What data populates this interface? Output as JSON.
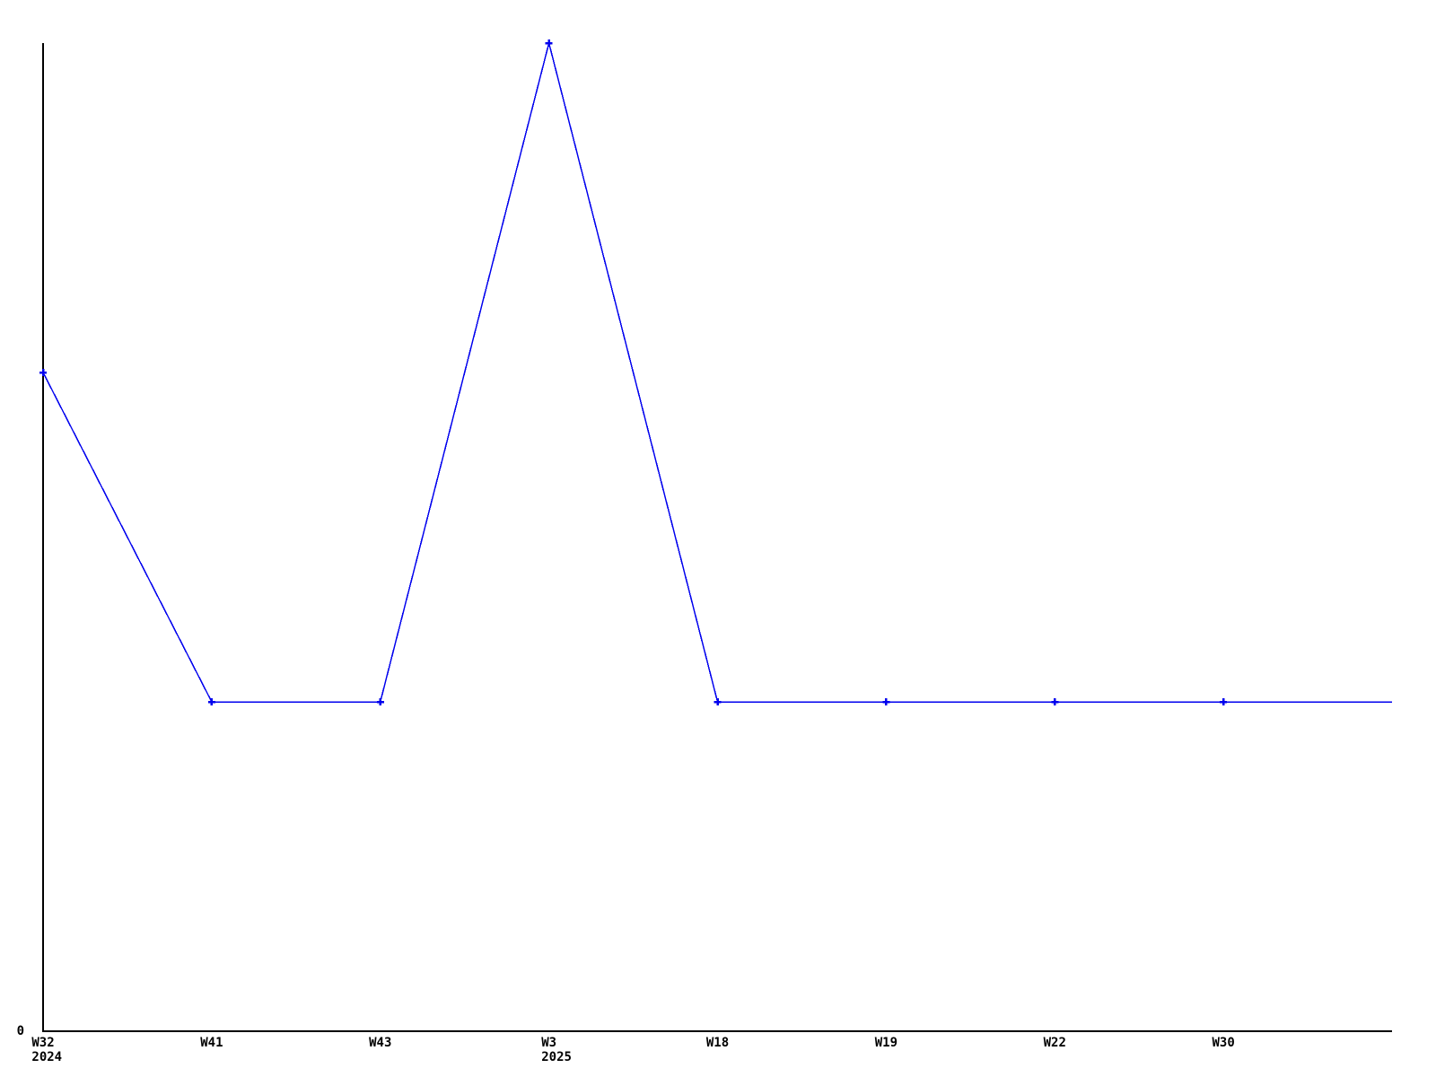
{
  "chart_data": {
    "type": "line",
    "title": "",
    "xlabel": "",
    "ylabel": "",
    "ylim": [
      0,
      3
    ],
    "grid": false,
    "legend_position": "none",
    "background_color": "#ffffff",
    "axis_color": "#000000",
    "line_color": "#0000ee",
    "marker_style": "plus",
    "y_tick_labels": [
      "0"
    ],
    "x_tick_labels": [
      {
        "week": "W32",
        "year": "2024"
      },
      {
        "week": "W41",
        "year": ""
      },
      {
        "week": "W43",
        "year": ""
      },
      {
        "week": "W3",
        "year": "2025"
      },
      {
        "week": "W18",
        "year": ""
      },
      {
        "week": "W19",
        "year": ""
      },
      {
        "week": "W22",
        "year": ""
      },
      {
        "week": "W30",
        "year": ""
      }
    ],
    "series": [
      {
        "name": "",
        "values": [
          2,
          1,
          1,
          3,
          1,
          1,
          1,
          1,
          1
        ],
        "marker_point_indices": [
          0,
          1,
          2,
          3,
          4,
          5,
          6,
          7
        ]
      }
    ]
  }
}
